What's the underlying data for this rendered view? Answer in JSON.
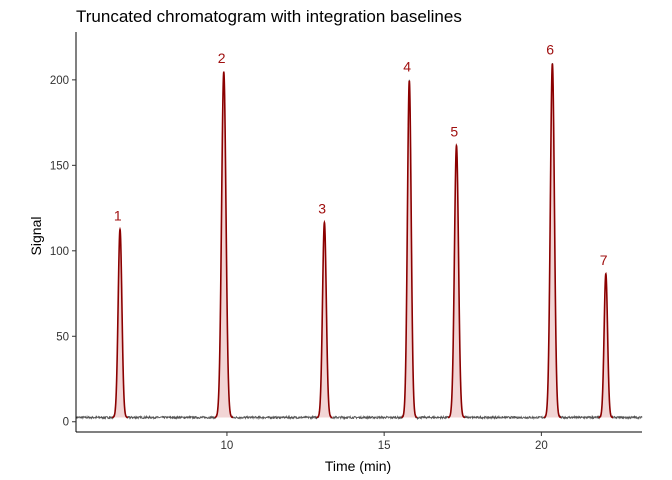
{
  "chart_data": {
    "type": "line",
    "title": "Truncated chromatogram with integration baselines",
    "xlabel": "Time (min)",
    "ylabel": "Signal",
    "xlim": [
      5.2,
      23.2
    ],
    "ylim": [
      -6,
      228
    ],
    "x_ticks": [
      10,
      15,
      20
    ],
    "y_ticks": [
      0,
      50,
      100,
      150,
      200
    ],
    "grid": false,
    "legend": "none",
    "baseline": 2.5,
    "colors": {
      "trace": "#555555",
      "peak": "#8B0000",
      "fill": "#F2D5D5",
      "label": "#A01010",
      "axis": "#000000"
    },
    "peaks": [
      {
        "label": "1",
        "rt": 6.6,
        "height": 110,
        "width": 0.06
      },
      {
        "label": "2",
        "rt": 9.9,
        "height": 202,
        "width": 0.07
      },
      {
        "label": "3",
        "rt": 13.1,
        "height": 114,
        "width": 0.06
      },
      {
        "label": "4",
        "rt": 15.8,
        "height": 197,
        "width": 0.06
      },
      {
        "label": "5",
        "rt": 17.3,
        "height": 159,
        "width": 0.065
      },
      {
        "label": "6",
        "rt": 20.35,
        "height": 207,
        "width": 0.065
      },
      {
        "label": "7",
        "rt": 22.05,
        "height": 84,
        "width": 0.055
      }
    ]
  }
}
